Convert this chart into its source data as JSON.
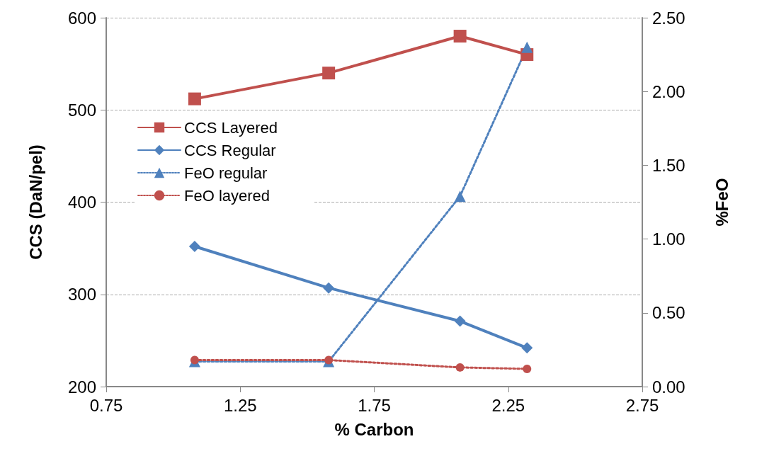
{
  "chart_data": {
    "type": "line",
    "xlabel": "% Carbon",
    "ylabel": "CCS (DaN/pel)",
    "y2label": "%FeO",
    "xlim": [
      0.75,
      2.75
    ],
    "xticks": [
      0.75,
      1.25,
      1.75,
      2.25,
      2.75
    ],
    "ylim": [
      200,
      600
    ],
    "yticks": [
      200,
      300,
      400,
      500,
      600
    ],
    "y2lim": [
      0,
      2.5
    ],
    "y2ticks": [
      {
        "value": 0,
        "label": "0.00"
      },
      {
        "value": 0.5,
        "label": "0.50"
      },
      {
        "value": 1,
        "label": "1.00"
      },
      {
        "value": 1.5,
        "label": "1.50"
      },
      {
        "value": 2,
        "label": "2.00"
      },
      {
        "value": 2.5,
        "label": "2.50"
      }
    ],
    "x": [
      1.08,
      1.58,
      2.07,
      2.32
    ],
    "grid": "y",
    "legend": "top left",
    "series": [
      {
        "name": "CCS Layered",
        "color": "#c0504d",
        "values": [
          512,
          540,
          580,
          560
        ],
        "marker": "square",
        "line_style": "solid"
      },
      {
        "name": "CCS Regular",
        "color": "#4f81bd",
        "values": [
          352,
          307,
          271,
          242
        ],
        "marker": "diamond",
        "line_style": "solid"
      },
      {
        "name": "FeO regular",
        "color": "#4f81bd",
        "values": [
          0.17,
          0.17,
          1.29,
          2.3
        ],
        "marker": "triangle",
        "line_style": "dotted",
        "axis": "y2"
      },
      {
        "name": "FeO layered",
        "color": "#c0504d",
        "values": [
          0.18,
          0.18,
          0.13,
          0.12
        ],
        "marker": "circle",
        "line_style": "dotted",
        "axis": "y2"
      }
    ]
  }
}
